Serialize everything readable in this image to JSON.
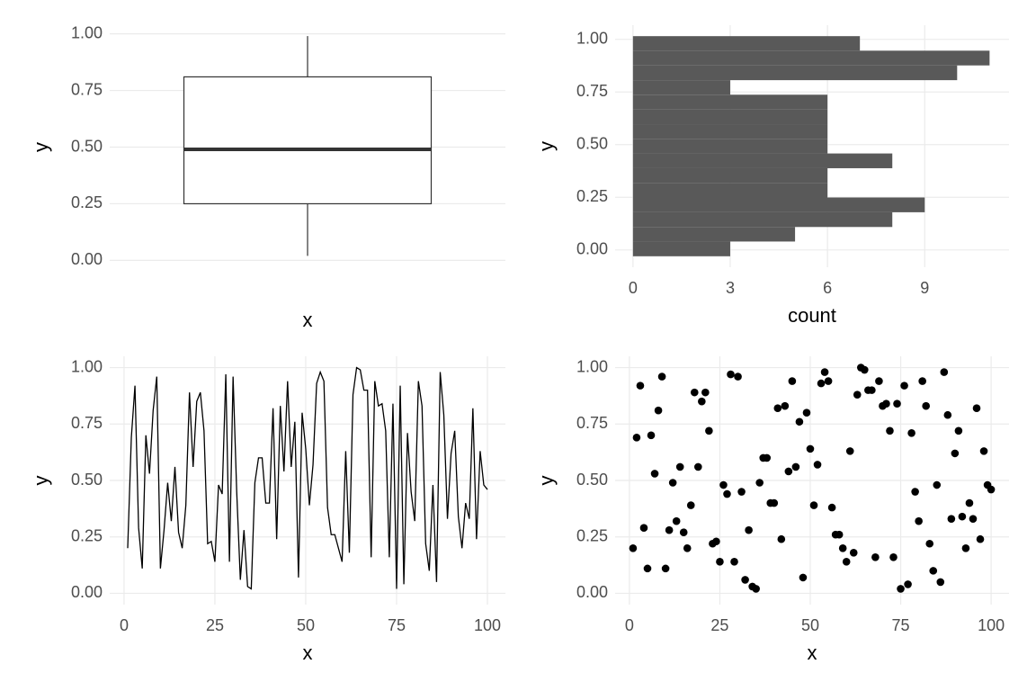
{
  "chart_data": [
    {
      "type": "box",
      "x_label": "x",
      "y_label": "y",
      "color": "#333333",
      "min": 0.02,
      "q1": 0.25,
      "median": 0.49,
      "q3": 0.81,
      "max": 0.99,
      "ylim": [
        -0.05,
        1.05
      ],
      "yticks": [
        {
          "value": 0,
          "label": "0.00"
        },
        {
          "value": 0.25,
          "label": "0.25"
        },
        {
          "value": 0.5,
          "label": "0.50"
        },
        {
          "value": 0.75,
          "label": "0.75"
        },
        {
          "value": 1,
          "label": "1.00"
        }
      ],
      "grid": true
    },
    {
      "type": "histogram",
      "orientation": "horizontal",
      "x_label": "count",
      "y_label": "y",
      "color": "#595959",
      "bins": [
        -0.03,
        0.04,
        0.109,
        0.179,
        0.249,
        0.318,
        0.388,
        0.458,
        0.528,
        0.597,
        0.667,
        0.737,
        0.806,
        0.876,
        0.946,
        1.015
      ],
      "counts": [
        3,
        5,
        8,
        9,
        6,
        6,
        8,
        6,
        6,
        6,
        6,
        3,
        10,
        11,
        7
      ],
      "xlim": [
        -0.55,
        11.6
      ],
      "xticks": [
        0,
        3,
        6,
        9
      ],
      "ylim": [
        -0.082,
        1.067
      ],
      "yticks": [
        {
          "value": 0,
          "label": "0.00"
        },
        {
          "value": 0.25,
          "label": "0.25"
        },
        {
          "value": 0.5,
          "label": "0.50"
        },
        {
          "value": 0.75,
          "label": "0.75"
        },
        {
          "value": 1,
          "label": "1.00"
        }
      ],
      "grid": true
    },
    {
      "type": "line",
      "x_label": "x",
      "y_label": "y",
      "color": "#000000",
      "x": [
        1,
        2,
        3,
        4,
        5,
        6,
        7,
        8,
        9,
        10,
        11,
        12,
        13,
        14,
        15,
        16,
        17,
        18,
        19,
        20,
        21,
        22,
        23,
        24,
        25,
        26,
        27,
        28,
        29,
        30,
        31,
        32,
        33,
        34,
        35,
        36,
        37,
        38,
        39,
        40,
        41,
        42,
        43,
        44,
        45,
        46,
        47,
        48,
        49,
        50,
        51,
        52,
        53,
        54,
        55,
        56,
        57,
        58,
        59,
        60,
        61,
        62,
        63,
        64,
        65,
        66,
        67,
        68,
        69,
        70,
        71,
        72,
        73,
        74,
        75,
        76,
        77,
        78,
        79,
        80,
        81,
        82,
        83,
        84,
        85,
        86,
        87,
        88,
        89,
        90,
        91,
        92,
        93,
        94,
        95,
        96,
        97,
        98,
        99,
        100
      ],
      "values": [
        0.2,
        0.69,
        0.92,
        0.29,
        0.11,
        0.7,
        0.53,
        0.81,
        0.96,
        0.11,
        0.28,
        0.49,
        0.32,
        0.56,
        0.27,
        0.2,
        0.39,
        0.89,
        0.56,
        0.85,
        0.89,
        0.72,
        0.22,
        0.23,
        0.14,
        0.48,
        0.44,
        0.97,
        0.14,
        0.96,
        0.45,
        0.06,
        0.28,
        0.03,
        0.02,
        0.49,
        0.6,
        0.6,
        0.4,
        0.4,
        0.82,
        0.24,
        0.83,
        0.54,
        0.94,
        0.56,
        0.76,
        0.07,
        0.8,
        0.64,
        0.39,
        0.57,
        0.93,
        0.98,
        0.94,
        0.38,
        0.26,
        0.26,
        0.2,
        0.14,
        0.63,
        0.18,
        0.88,
        1.0,
        0.99,
        0.9,
        0.9,
        0.16,
        0.94,
        0.83,
        0.84,
        0.72,
        0.16,
        0.84,
        0.02,
        0.92,
        0.04,
        0.71,
        0.45,
        0.32,
        0.94,
        0.83,
        0.22,
        0.1,
        0.48,
        0.05,
        0.98,
        0.79,
        0.33,
        0.62,
        0.72,
        0.34,
        0.2,
        0.4,
        0.33,
        0.82,
        0.24,
        0.63,
        0.48,
        0.46
      ],
      "xlim": [
        -3.95,
        104.95
      ],
      "xticks": [
        0,
        25,
        50,
        75,
        100
      ],
      "ylim": [
        -0.05,
        1.05
      ],
      "yticks": [
        {
          "value": 0,
          "label": "0.00"
        },
        {
          "value": 0.25,
          "label": "0.25"
        },
        {
          "value": 0.5,
          "label": "0.50"
        },
        {
          "value": 0.75,
          "label": "0.75"
        },
        {
          "value": 1,
          "label": "1.00"
        }
      ],
      "grid": true
    },
    {
      "type": "scatter",
      "x_label": "x",
      "y_label": "y",
      "color": "#000000",
      "x": [
        1,
        2,
        3,
        4,
        5,
        6,
        7,
        8,
        9,
        10,
        11,
        12,
        13,
        14,
        15,
        16,
        17,
        18,
        19,
        20,
        21,
        22,
        23,
        24,
        25,
        26,
        27,
        28,
        29,
        30,
        31,
        32,
        33,
        34,
        35,
        36,
        37,
        38,
        39,
        40,
        41,
        42,
        43,
        44,
        45,
        46,
        47,
        48,
        49,
        50,
        51,
        52,
        53,
        54,
        55,
        56,
        57,
        58,
        59,
        60,
        61,
        62,
        63,
        64,
        65,
        66,
        67,
        68,
        69,
        70,
        71,
        72,
        73,
        74,
        75,
        76,
        77,
        78,
        79,
        80,
        81,
        82,
        83,
        84,
        85,
        86,
        87,
        88,
        89,
        90,
        91,
        92,
        93,
        94,
        95,
        96,
        97,
        98,
        99,
        100
      ],
      "values": [
        0.2,
        0.69,
        0.92,
        0.29,
        0.11,
        0.7,
        0.53,
        0.81,
        0.96,
        0.11,
        0.28,
        0.49,
        0.32,
        0.56,
        0.27,
        0.2,
        0.39,
        0.89,
        0.56,
        0.85,
        0.89,
        0.72,
        0.22,
        0.23,
        0.14,
        0.48,
        0.44,
        0.97,
        0.14,
        0.96,
        0.45,
        0.06,
        0.28,
        0.03,
        0.02,
        0.49,
        0.6,
        0.6,
        0.4,
        0.4,
        0.82,
        0.24,
        0.83,
        0.54,
        0.94,
        0.56,
        0.76,
        0.07,
        0.8,
        0.64,
        0.39,
        0.57,
        0.93,
        0.98,
        0.94,
        0.38,
        0.26,
        0.26,
        0.2,
        0.14,
        0.63,
        0.18,
        0.88,
        1.0,
        0.99,
        0.9,
        0.9,
        0.16,
        0.94,
        0.83,
        0.84,
        0.72,
        0.16,
        0.84,
        0.02,
        0.92,
        0.04,
        0.71,
        0.45,
        0.32,
        0.94,
        0.83,
        0.22,
        0.1,
        0.48,
        0.05,
        0.98,
        0.79,
        0.33,
        0.62,
        0.72,
        0.34,
        0.2,
        0.4,
        0.33,
        0.82,
        0.24,
        0.63,
        0.48,
        0.46
      ],
      "xlim": [
        -3.95,
        104.95
      ],
      "xticks": [
        0,
        25,
        50,
        75,
        100
      ],
      "ylim": [
        -0.05,
        1.05
      ],
      "yticks": [
        {
          "value": 0,
          "label": "0.00"
        },
        {
          "value": 0.25,
          "label": "0.25"
        },
        {
          "value": 0.5,
          "label": "0.50"
        },
        {
          "value": 0.75,
          "label": "0.75"
        },
        {
          "value": 1,
          "label": "1.00"
        }
      ],
      "grid": true
    }
  ]
}
